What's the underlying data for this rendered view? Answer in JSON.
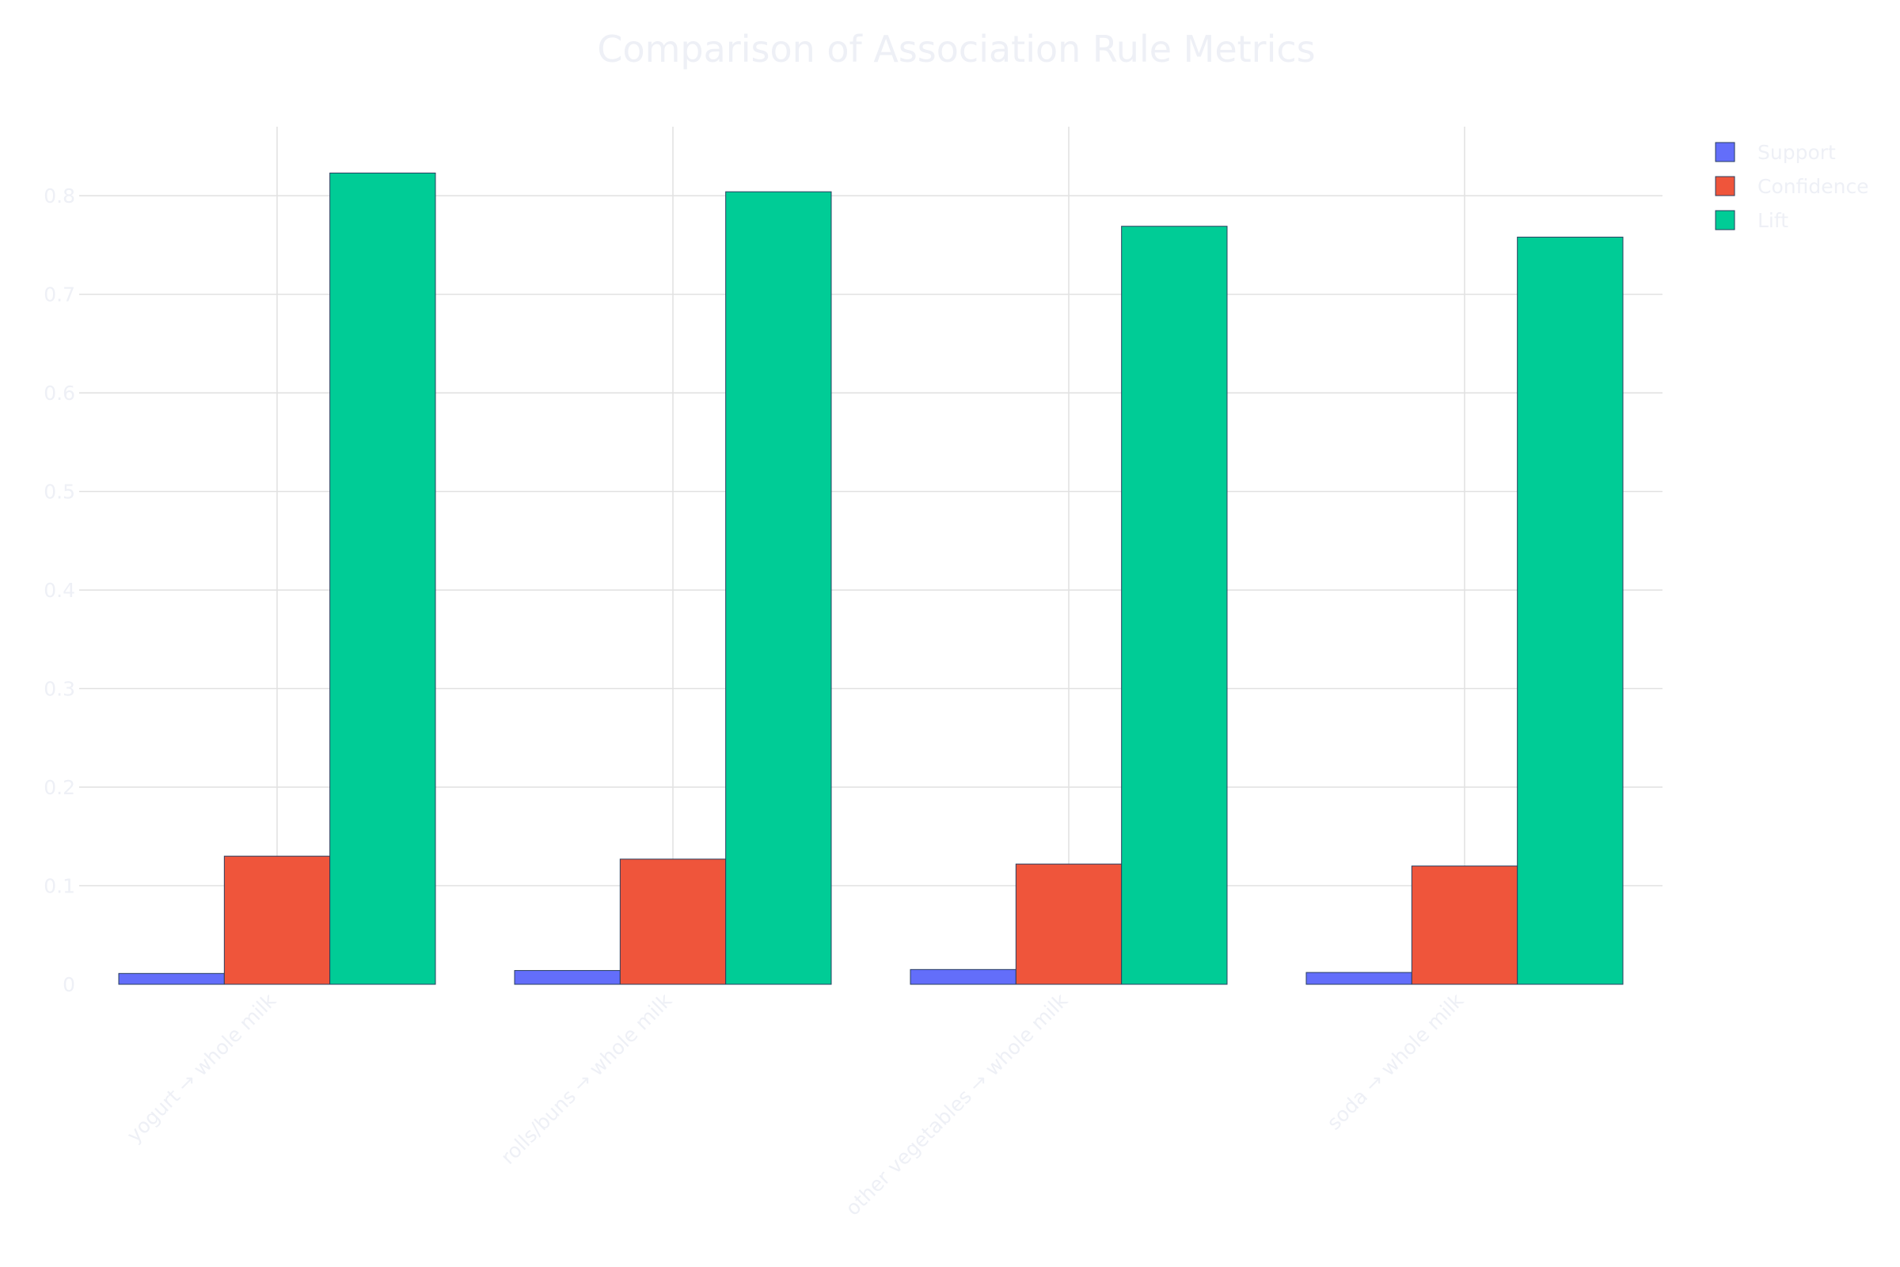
{
  "chart_data": {
    "type": "bar",
    "title": "Comparison of Association Rule Metrics",
    "xlabel": "",
    "ylabel": "",
    "categories": [
      "yogurt → whole milk",
      "rolls/buns → whole milk",
      "other vegetables → whole milk",
      "soda → whole milk"
    ],
    "series": [
      {
        "name": "Support",
        "color": "#636efa",
        "values": [
          0.011,
          0.014,
          0.015,
          0.012
        ]
      },
      {
        "name": "Confidence",
        "color": "#ef553b",
        "values": [
          0.13,
          0.127,
          0.122,
          0.12
        ]
      },
      {
        "name": "Lift",
        "color": "#00cc96",
        "values": [
          0.823,
          0.804,
          0.769,
          0.758
        ]
      }
    ],
    "ylim": [
      0,
      0.87
    ],
    "yticks": [
      0,
      0.1,
      0.2,
      0.3,
      0.4,
      0.5,
      0.6,
      0.7,
      0.8
    ],
    "ytick_labels": [
      "0",
      "0.1",
      "0.2",
      "0.3",
      "0.4",
      "0.5",
      "0.6",
      "0.7",
      "0.8"
    ],
    "grid": true,
    "legend_position": "top-right",
    "text_color": "#eef0f6",
    "grid_color": "#e1e1e1"
  }
}
